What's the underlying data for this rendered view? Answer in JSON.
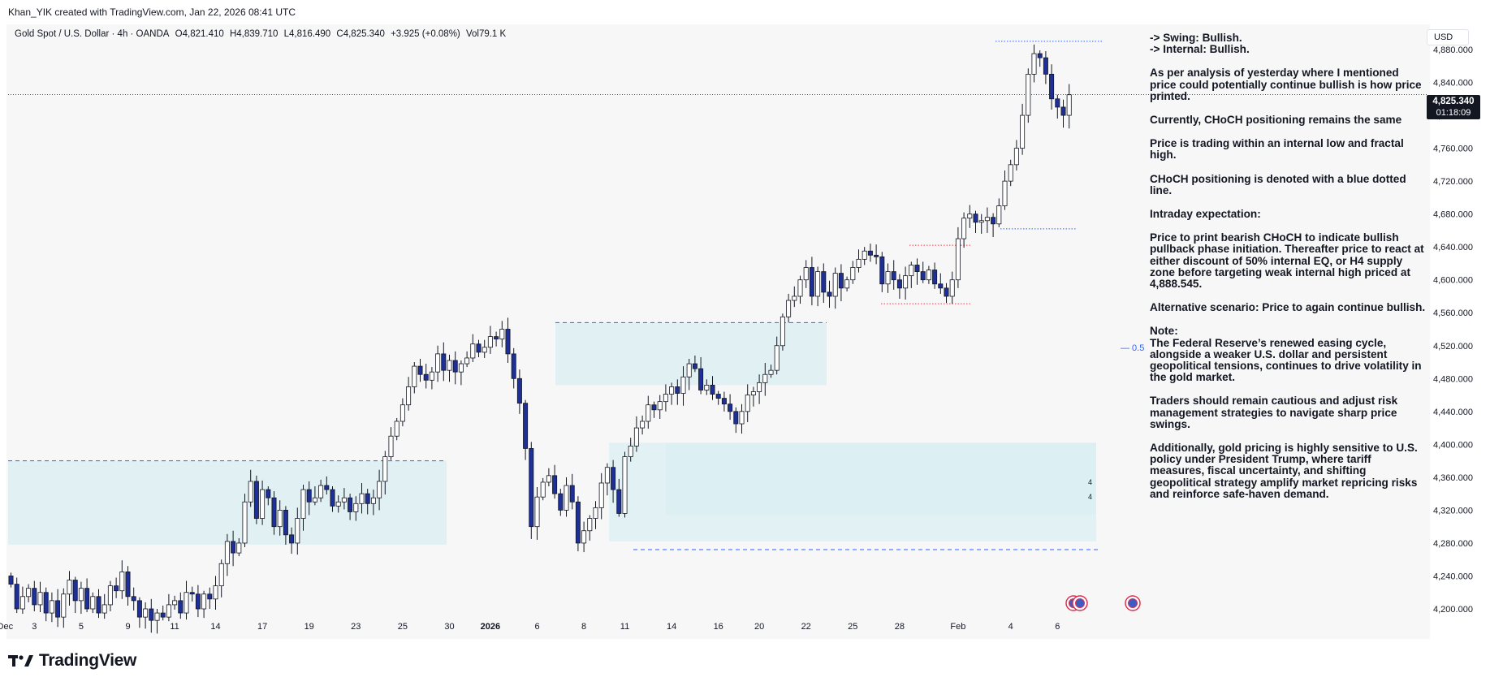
{
  "header": {
    "created_text": "Khan_YIK created with TradingView.com, Jan 22, 2026 08:41 UTC"
  },
  "legend": {
    "symbol": "Gold Spot / U.S. Dollar · 4h · OANDA",
    "open": "O4,821.410",
    "high": "H4,839.710",
    "low": "L4,816.490",
    "close": "C4,825.340",
    "change": "+3.925 (+0.08%)",
    "volume": "Vol79.1 K"
  },
  "currency_label": "USD",
  "current_price": {
    "price": "4,825.340",
    "countdown": "01:18:09"
  },
  "brand": "TradingView",
  "notes": [
    "-> Swing:  Bullish.",
    "-> Internal:  Bullish.",
    "As per analysis of yesterday where I mentioned price could potentially continue bullish is how price printed.",
    "Currently, CHoCH positioning remains the same",
    "Price is trading within an internal low and fractal high.",
    "CHoCH positioning is denoted with a blue dotted line.",
    "Intraday expectation:",
    "Price to print bearish CHoCH to indicate bullish pullback phase initiation.  Thereafter price to react at either discount of 50% internal EQ, or H4 supply zone before targeting weak internal high priced at 4,888.545.",
    "Alternative scenario:  Price to again continue bullish.",
    "Note:",
    "The Federal Reserve’s renewed easing cycle, alongside a weaker U.S. dollar and persistent geopolitical tensions, continues to drive volatility in the gold market.",
    "Traders should remain cautious and adjust risk management strategies to navigate sharp price swings.",
    "Additionally, gold pricing is highly sensitive to U.S. policy under President Trump, where tariff measures, fiscal uncertainty, and shifting geopolitical strategy amplify market repricing risks and reinforce safe-haven demand."
  ],
  "colors": {
    "bull_candle": "#ffffff",
    "bear_candle": "#1e2f97",
    "wick": "#131722",
    "zone_fill": "#d9eef2",
    "choch_line": "#2962ff",
    "red_dotted": "#f23645",
    "background": "#f8f7f8"
  },
  "chart_data": {
    "type": "candlestick",
    "symbol": "Gold Spot / U.S. Dollar",
    "timeframe": "4h",
    "y_axis": {
      "range": [
        4180,
        4900
      ],
      "ticks": [
        "4,880.000",
        "4,840.000",
        "4,800.000",
        "4,760.000",
        "4,720.000",
        "4,680.000",
        "4,640.000",
        "4,600.000",
        "4,560.000",
        "4,520.000",
        "4,480.000",
        "4,440.000",
        "4,400.000",
        "4,360.000",
        "4,320.000",
        "4,280.000",
        "4,240.000",
        "4,200.000"
      ]
    },
    "x_axis": {
      "ticks": [
        {
          "label": "Dec",
          "x": -1
        },
        {
          "label": "3",
          "x": 4
        },
        {
          "label": "5",
          "x": 12
        },
        {
          "label": "9",
          "x": 20
        },
        {
          "label": "11",
          "x": 28
        },
        {
          "label": "14",
          "x": 35
        },
        {
          "label": "17",
          "x": 43
        },
        {
          "label": "19",
          "x": 51
        },
        {
          "label": "23",
          "x": 59
        },
        {
          "label": "25",
          "x": 67
        },
        {
          "label": "30",
          "x": 75
        },
        {
          "label": "2026",
          "x": 82,
          "bold": true
        },
        {
          "label": "6",
          "x": 90
        },
        {
          "label": "8",
          "x": 98
        },
        {
          "label": "11",
          "x": 105
        },
        {
          "label": "14",
          "x": 113
        },
        {
          "label": "16",
          "x": 121
        },
        {
          "label": "20",
          "x": 128
        },
        {
          "label": "22",
          "x": 136
        },
        {
          "label": "25",
          "x": 144
        },
        {
          "label": "28",
          "x": 152
        },
        {
          "label": "Feb",
          "x": 162
        },
        {
          "label": "4",
          "x": 171
        },
        {
          "label": "6",
          "x": 179
        }
      ]
    },
    "last_price": 4825.34,
    "candles_close": [
      4230,
      4200,
      4215,
      4225,
      4205,
      4220,
      4195,
      4210,
      4190,
      4218,
      4235,
      4210,
      4225,
      4200,
      4215,
      4195,
      4205,
      4228,
      4222,
      4245,
      4215,
      4210,
      4190,
      4200,
      4186,
      4195,
      4190,
      4205,
      4210,
      4195,
      4220,
      4218,
      4200,
      4218,
      4212,
      4228,
      4255,
      4282,
      4268,
      4280,
      4330,
      4355,
      4310,
      4345,
      4335,
      4300,
      4320,
      4290,
      4280,
      4310,
      4345,
      4330,
      4335,
      4350,
      4345,
      4325,
      4330,
      4335,
      4318,
      4328,
      4340,
      4328,
      4335,
      4355,
      4385,
      4410,
      4428,
      4448,
      4470,
      4495,
      4485,
      4478,
      4488,
      4510,
      4490,
      4502,
      4488,
      4498,
      4505,
      4522,
      4512,
      4518,
      4531,
      4528,
      4540,
      4510,
      4480,
      4450,
      4395,
      4300,
      4336,
      4354,
      4362,
      4340,
      4320,
      4350,
      4330,
      4280,
      4295,
      4310,
      4323,
      4353,
      4372,
      4345,
      4316,
      4385,
      4398,
      4420,
      4428,
      4448,
      4442,
      4452,
      4461,
      4470,
      4462,
      4482,
      4498,
      4492,
      4466,
      4472,
      4461,
      4456,
      4449,
      4440,
      4425,
      4440,
      4460,
      4464,
      4475,
      4485,
      4490,
      4520,
      4555,
      4575,
      4580,
      4600,
      4615,
      4580,
      4610,
      4585,
      4580,
      4608,
      4590,
      4600,
      4615,
      4625,
      4635,
      4630,
      4628,
      4595,
      4610,
      4600,
      4590,
      4605,
      4618,
      4610,
      4600,
      4612,
      4595,
      4590,
      4580,
      4600,
      4650,
      4675,
      4680,
      4670,
      4672,
      4676,
      4668,
      4690,
      4720,
      4740,
      4760,
      4800,
      4850,
      4875,
      4870,
      4850,
      4820,
      4810,
      4800,
      4825
    ]
  }
}
